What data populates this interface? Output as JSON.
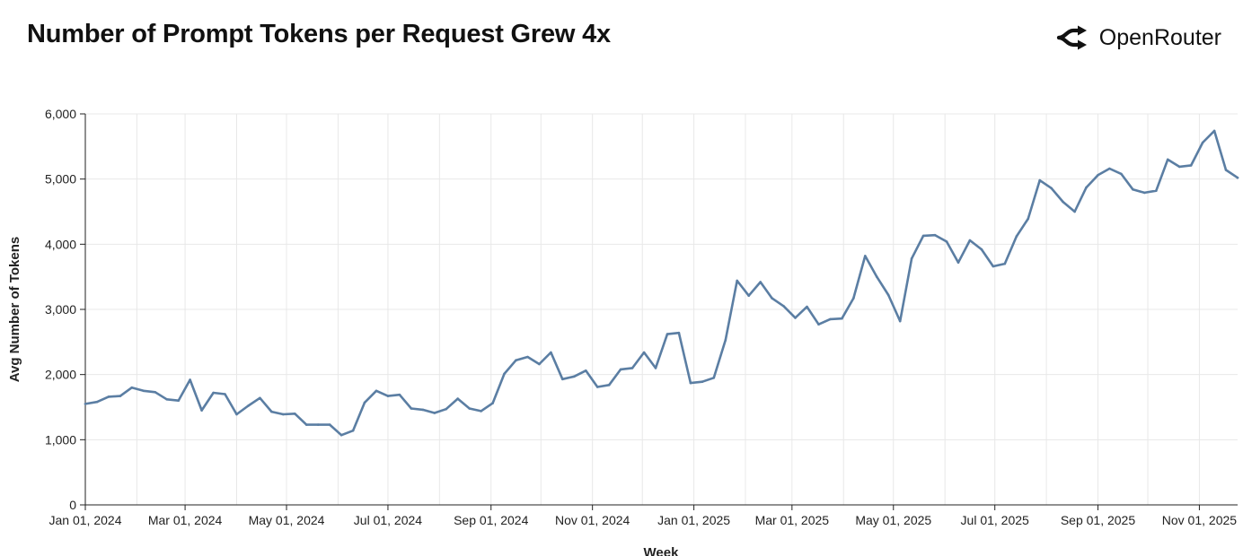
{
  "header": {
    "title": "Number of Prompt Tokens per Request Grew 4x",
    "brand": "OpenRouter",
    "brand_icon": "openrouter-logo-icon"
  },
  "colors": {
    "line": "#5b7ea3",
    "grid": "#e8e8e8",
    "axis": "#222222"
  },
  "chart_data": {
    "type": "line",
    "title": "Number of Prompt Tokens per Request Grew 4x",
    "xlabel": "Week",
    "ylabel": "Avg Number of Tokens",
    "ylim": [
      0,
      6000
    ],
    "yticks": [
      0,
      1000,
      2000,
      3000,
      4000,
      5000,
      6000
    ],
    "ytick_labels": [
      "0",
      "1,000",
      "2,000",
      "3,000",
      "4,000",
      "5,000",
      "6,000"
    ],
    "x_start": "2024-01-01",
    "x_end": "2025-11-24",
    "xtick_dates": [
      "2024-01-01",
      "2024-03-01",
      "2024-05-01",
      "2024-07-01",
      "2024-09-01",
      "2024-11-01",
      "2025-01-01",
      "2025-03-01",
      "2025-05-01",
      "2025-07-01",
      "2025-09-01",
      "2025-11-01"
    ],
    "xtick_labels": [
      "Jan 01, 2024",
      "Mar 01, 2024",
      "May 01, 2024",
      "Jul 01, 2024",
      "Sep 01, 2024",
      "Nov 01, 2024",
      "Jan 01, 2025",
      "Mar 01, 2025",
      "May 01, 2025",
      "Jul 01, 2025",
      "Sep 01, 2025",
      "Nov 01, 2025"
    ],
    "minor_gridline_dates": [
      "2024-02-01",
      "2024-04-01",
      "2024-06-01",
      "2024-08-01",
      "2024-10-01",
      "2024-12-01",
      "2025-02-01",
      "2025-04-01",
      "2025-06-01",
      "2025-08-01",
      "2025-10-01"
    ],
    "grid": true,
    "series": [
      {
        "name": "Avg Number of Tokens",
        "points": [
          [
            "2024-01-01",
            1550
          ],
          [
            "2024-01-08",
            1580
          ],
          [
            "2024-01-15",
            1660
          ],
          [
            "2024-01-22",
            1670
          ],
          [
            "2024-01-29",
            1800
          ],
          [
            "2024-02-05",
            1750
          ],
          [
            "2024-02-12",
            1730
          ],
          [
            "2024-02-19",
            1620
          ],
          [
            "2024-02-26",
            1600
          ],
          [
            "2024-03-04",
            1920
          ],
          [
            "2024-03-11",
            1450
          ],
          [
            "2024-03-18",
            1720
          ],
          [
            "2024-03-25",
            1700
          ],
          [
            "2024-04-01",
            1390
          ],
          [
            "2024-04-08",
            1520
          ],
          [
            "2024-04-15",
            1640
          ],
          [
            "2024-04-22",
            1430
          ],
          [
            "2024-04-29",
            1390
          ],
          [
            "2024-05-06",
            1400
          ],
          [
            "2024-05-13",
            1230
          ],
          [
            "2024-05-20",
            1230
          ],
          [
            "2024-05-27",
            1230
          ],
          [
            "2024-06-03",
            1070
          ],
          [
            "2024-06-10",
            1140
          ],
          [
            "2024-06-17",
            1570
          ],
          [
            "2024-06-24",
            1750
          ],
          [
            "2024-07-01",
            1670
          ],
          [
            "2024-07-08",
            1690
          ],
          [
            "2024-07-15",
            1480
          ],
          [
            "2024-07-22",
            1460
          ],
          [
            "2024-07-29",
            1410
          ],
          [
            "2024-08-05",
            1470
          ],
          [
            "2024-08-12",
            1630
          ],
          [
            "2024-08-19",
            1480
          ],
          [
            "2024-08-26",
            1440
          ],
          [
            "2024-09-02",
            1560
          ],
          [
            "2024-09-09",
            2010
          ],
          [
            "2024-09-16",
            2220
          ],
          [
            "2024-09-23",
            2270
          ],
          [
            "2024-09-30",
            2160
          ],
          [
            "2024-10-07",
            2340
          ],
          [
            "2024-10-14",
            1930
          ],
          [
            "2024-10-21",
            1970
          ],
          [
            "2024-10-28",
            2060
          ],
          [
            "2024-11-04",
            1810
          ],
          [
            "2024-11-11",
            1840
          ],
          [
            "2024-11-18",
            2080
          ],
          [
            "2024-11-25",
            2100
          ],
          [
            "2024-12-02",
            2340
          ],
          [
            "2024-12-09",
            2100
          ],
          [
            "2024-12-16",
            2620
          ],
          [
            "2024-12-23",
            2640
          ],
          [
            "2024-12-30",
            1870
          ],
          [
            "2025-01-06",
            1890
          ],
          [
            "2025-01-13",
            1950
          ],
          [
            "2025-01-20",
            2530
          ],
          [
            "2025-01-27",
            3440
          ],
          [
            "2025-02-03",
            3210
          ],
          [
            "2025-02-10",
            3420
          ],
          [
            "2025-02-17",
            3170
          ],
          [
            "2025-02-24",
            3050
          ],
          [
            "2025-03-03",
            2870
          ],
          [
            "2025-03-10",
            3040
          ],
          [
            "2025-03-17",
            2770
          ],
          [
            "2025-03-24",
            2850
          ],
          [
            "2025-03-31",
            2860
          ],
          [
            "2025-04-07",
            3170
          ],
          [
            "2025-04-14",
            3820
          ],
          [
            "2025-04-21",
            3500
          ],
          [
            "2025-04-28",
            3220
          ],
          [
            "2025-05-05",
            2820
          ],
          [
            "2025-05-12",
            3780
          ],
          [
            "2025-05-19",
            4130
          ],
          [
            "2025-05-26",
            4140
          ],
          [
            "2025-06-02",
            4040
          ],
          [
            "2025-06-09",
            3720
          ],
          [
            "2025-06-16",
            4060
          ],
          [
            "2025-06-23",
            3920
          ],
          [
            "2025-06-30",
            3660
          ],
          [
            "2025-07-07",
            3700
          ],
          [
            "2025-07-14",
            4120
          ],
          [
            "2025-07-21",
            4390
          ],
          [
            "2025-07-28",
            4980
          ],
          [
            "2025-08-04",
            4860
          ],
          [
            "2025-08-11",
            4650
          ],
          [
            "2025-08-18",
            4500
          ],
          [
            "2025-08-25",
            4870
          ],
          [
            "2025-09-01",
            5060
          ],
          [
            "2025-09-08",
            5160
          ],
          [
            "2025-09-15",
            5080
          ],
          [
            "2025-09-22",
            4840
          ],
          [
            "2025-09-29",
            4790
          ],
          [
            "2025-10-06",
            4820
          ],
          [
            "2025-10-13",
            5300
          ],
          [
            "2025-10-20",
            5190
          ],
          [
            "2025-10-27",
            5210
          ],
          [
            "2025-11-03",
            5560
          ],
          [
            "2025-11-10",
            5740
          ],
          [
            "2025-11-17",
            5140
          ],
          [
            "2025-11-24",
            5020
          ]
        ]
      }
    ]
  }
}
